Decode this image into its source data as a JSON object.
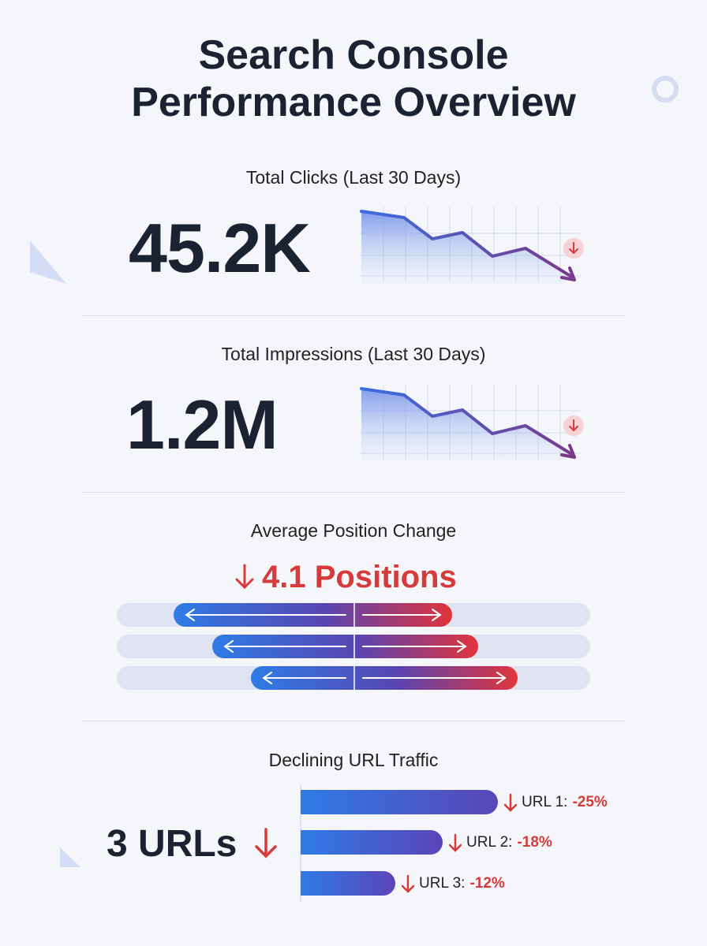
{
  "title": "Search Console Performance Overview",
  "metrics": [
    {
      "label": "Total Clicks (Last 30 Days)",
      "value": "45.2K"
    },
    {
      "label": "Total Impressions (Last 30 Days)",
      "value": "1.2M"
    }
  ],
  "position": {
    "label": "Average Position Change",
    "value": "4.1 Positions"
  },
  "urls": {
    "label": "Declining URL Traffic",
    "summary": "3 URLs",
    "items": [
      {
        "name": "URL 1:",
        "value": -25,
        "value_label": "-25%"
      },
      {
        "name": "URL 2:",
        "value": -18,
        "value_label": "-18%"
      },
      {
        "name": "URL 3:",
        "value": -12,
        "value_label": "-12%"
      }
    ]
  }
}
